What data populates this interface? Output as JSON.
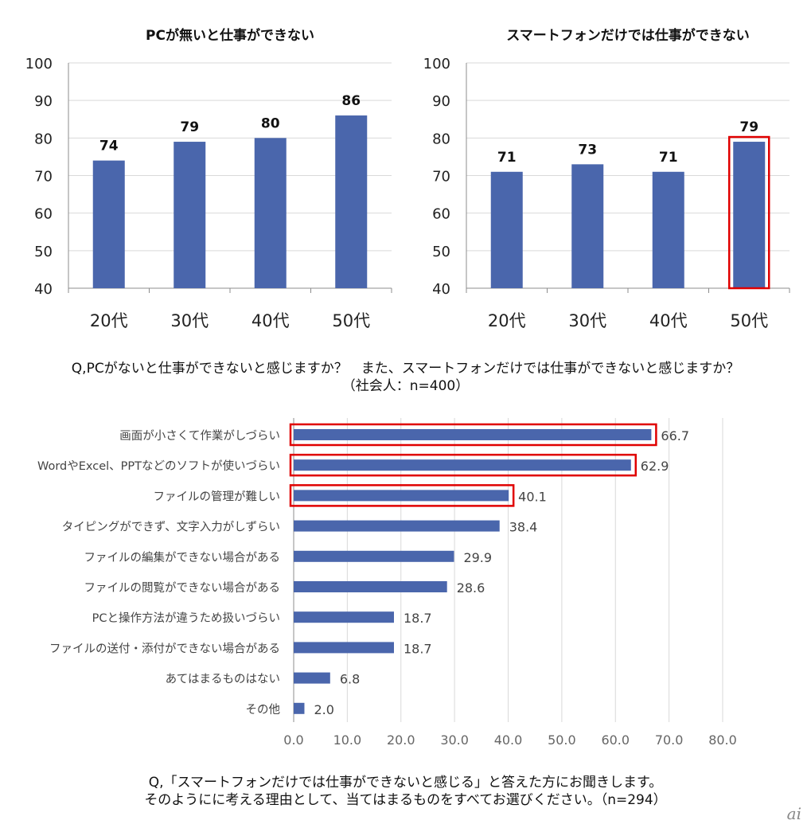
{
  "chart_data": [
    {
      "type": "bar",
      "title": "PCが無いと仕事ができない",
      "categories": [
        "20代",
        "30代",
        "40代",
        "50代"
      ],
      "values": [
        74,
        79,
        80,
        86
      ],
      "ylim": [
        40,
        100
      ],
      "yticks": [
        "40",
        "50",
        "60",
        "70",
        "80",
        "90",
        "100"
      ],
      "highlight_index": null
    },
    {
      "type": "bar",
      "title": "スマートフォンだけでは仕事ができない",
      "categories": [
        "20代",
        "30代",
        "40代",
        "50代"
      ],
      "values": [
        71,
        73,
        71,
        79
      ],
      "ylim": [
        40,
        100
      ],
      "yticks": [
        "40",
        "50",
        "60",
        "70",
        "80",
        "90",
        "100"
      ],
      "highlight_index": 3
    },
    {
      "type": "bar",
      "orientation": "horizontal",
      "categories": [
        "画面が小さくて作業がしづらい",
        "WordやExcel、PPTなどのソフトが使いづらい",
        "ファイルの管理が難しい",
        "タイピングができず、文字入力がしずらい",
        "ファイルの編集ができない場合がある",
        "ファイルの閲覧ができない場合がある",
        "PCと操作方法が違うため扱いづらい",
        "ファイルの送付・添付ができない場合がある",
        "あてはまるものはない",
        "その他"
      ],
      "values": [
        66.7,
        62.9,
        40.1,
        38.4,
        29.9,
        28.6,
        18.7,
        18.7,
        6.8,
        2.0
      ],
      "value_labels": [
        "66.7",
        "62.9",
        "40.1",
        "38.4",
        "29.9",
        "28.6",
        "18.7",
        "18.7",
        "6.8",
        "2.0"
      ],
      "xlim": [
        0,
        80
      ],
      "xticks": [
        "0.0",
        "10.0",
        "20.0",
        "30.0",
        "40.0",
        "50.0",
        "60.0",
        "70.0",
        "80.0"
      ],
      "highlight_indices": [
        0,
        1,
        2
      ]
    }
  ],
  "captions": {
    "top_line1": "Q,PCがないと仕事ができないと感じますか？　また、スマートフォンだけでは仕事ができないと感じますか？",
    "top_line2": "（社会人：n=400）",
    "bottom_line1": "Q,「スマートフォンだけでは仕事ができないと感じる」と答えた方にお聞きします。",
    "bottom_line2": "そのようにに考える理由として、当てはまるものをすべてお選びください。（n=294）"
  },
  "logo_text": "ai",
  "colors": {
    "bar": "#4a66ac",
    "highlight": "#e00000",
    "grid": "#d9d9d9",
    "axis": "#8c8c8c"
  }
}
